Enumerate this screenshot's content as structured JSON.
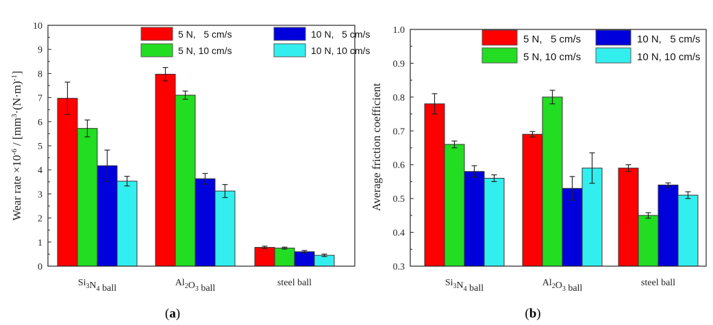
{
  "colors": {
    "5N_5cms": "#ff0000",
    "5N_10cms": "#22dd22",
    "10N_5cms": "#0000dd",
    "10N_10cms": "#33eeee"
  },
  "panels": [
    {
      "label_open": "(",
      "label_letter": "a",
      "label_close": ")",
      "ylabel_main": "Wear rate ×10",
      "ylabel_exp": "-6",
      "ylabel_rest": " / [mm",
      "ylabel_exp2": "3",
      "ylabel_rest2": "·(N·m)",
      "ylabel_exp3": "-1",
      "ylabel_end": "]"
    },
    {
      "label_open": "(",
      "label_letter": "b",
      "label_close": ")",
      "ylabel": "Average friction coefficient"
    }
  ],
  "categories_rich": [
    {
      "pre": "Si",
      "sub1": "3",
      "mid": "N",
      "sub2": "4",
      "post": " ball"
    },
    {
      "pre": "Al",
      "sub1": "2",
      "mid": "O",
      "sub2": "3",
      "post": " ball"
    },
    {
      "pre": "steel ball",
      "sub1": "",
      "mid": "",
      "sub2": "",
      "post": ""
    }
  ],
  "chart_data": [
    {
      "type": "bar",
      "categories": [
        "Si3N4 ball",
        "Al2O3 ball",
        "steel ball"
      ],
      "ylabel": "Wear rate ×10-6 / [mm3·(N·m)-1]",
      "ylim": [
        0,
        10
      ],
      "yticks": [
        "0",
        "1",
        "2",
        "3",
        "4",
        "5",
        "6",
        "7",
        "8",
        "9",
        "10"
      ],
      "legend_position": "top-right",
      "series": [
        {
          "name": "5 N,   5 cm/s",
          "color": "#ff0000",
          "values": [
            6.97,
            7.97,
            0.78
          ],
          "errors": [
            0.67,
            0.28,
            0.05
          ]
        },
        {
          "name": "5 N, 10 cm/s",
          "color": "#22dd22",
          "values": [
            5.72,
            7.1,
            0.75
          ],
          "errors": [
            0.35,
            0.17,
            0.04
          ]
        },
        {
          "name": "10 N,   5 cm/s",
          "color": "#0000dd",
          "values": [
            4.17,
            3.63,
            0.6
          ],
          "errors": [
            0.65,
            0.22,
            0.05
          ]
        },
        {
          "name": "10 N, 10 cm/s",
          "color": "#33eeee",
          "values": [
            3.53,
            3.12,
            0.45
          ],
          "errors": [
            0.2,
            0.27,
            0.05
          ]
        }
      ]
    },
    {
      "type": "bar",
      "categories": [
        "Si3N4 ball",
        "Al2O3 ball",
        "steel ball"
      ],
      "ylabel": "Average friction coefficient",
      "ylim": [
        0.3,
        1.0
      ],
      "yticks": [
        "0.3",
        "0.4",
        "0.5",
        "0.6",
        "0.7",
        "0.8",
        "0.9",
        "1.0"
      ],
      "legend_position": "top-right",
      "series": [
        {
          "name": "5 N,   5 cm/s",
          "color": "#ff0000",
          "values": [
            0.78,
            0.69,
            0.59
          ],
          "errors": [
            0.03,
            0.008,
            0.01
          ]
        },
        {
          "name": "5 N, 10 cm/s",
          "color": "#22dd22",
          "values": [
            0.66,
            0.8,
            0.45
          ],
          "errors": [
            0.01,
            0.02,
            0.008
          ]
        },
        {
          "name": "10 N,   5 cm/s",
          "color": "#0000dd",
          "values": [
            0.58,
            0.53,
            0.54
          ],
          "errors": [
            0.017,
            0.035,
            0.006
          ]
        },
        {
          "name": "10 N, 10 cm/s",
          "color": "#33eeee",
          "values": [
            0.56,
            0.59,
            0.51
          ],
          "errors": [
            0.01,
            0.045,
            0.01
          ]
        }
      ]
    }
  ]
}
